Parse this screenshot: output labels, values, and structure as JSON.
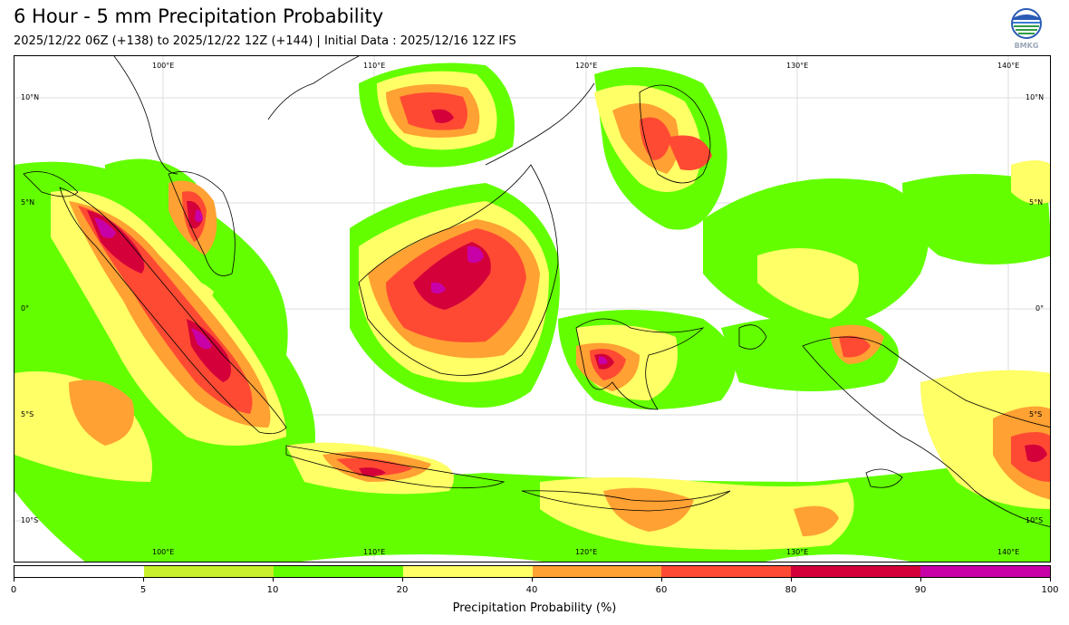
{
  "header": {
    "title": "6 Hour - 5 mm Precipitation Probability",
    "subtitle": "2025/12/22 06Z (+138) to 2025/12/22 12Z (+144) | Initial Data : 2025/12/16 12Z IFS",
    "logo_text": "BMKG"
  },
  "map": {
    "lon_labels": [
      "100°E",
      "110°E",
      "120°E",
      "130°E",
      "140°E"
    ],
    "lat_labels": [
      "10°N",
      "5°N",
      "0°",
      "5°S",
      "10°S"
    ],
    "colors": {
      "ocean": "#ffffff",
      "coastline": "#000000",
      "grid": "#cccccc"
    }
  },
  "colorbar": {
    "ticks": [
      "0",
      "5",
      "10",
      "20",
      "40",
      "60",
      "80",
      "90",
      "100"
    ],
    "colors": [
      "#ffffff",
      "#c8f02c",
      "#63ff00",
      "#ffff66",
      "#ffa133",
      "#ff4a33",
      "#d4003a",
      "#c800a8"
    ],
    "label": "Precipitation Probability (%)"
  }
}
